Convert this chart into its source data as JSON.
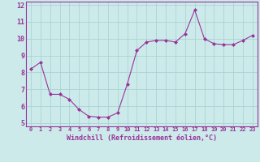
{
  "x": [
    0,
    1,
    2,
    3,
    4,
    5,
    6,
    7,
    8,
    9,
    10,
    11,
    12,
    13,
    14,
    15,
    16,
    17,
    18,
    19,
    20,
    21,
    22,
    23
  ],
  "y": [
    8.2,
    8.6,
    6.7,
    6.7,
    6.4,
    5.8,
    5.4,
    5.35,
    5.35,
    5.6,
    7.3,
    9.3,
    9.8,
    9.9,
    9.9,
    9.8,
    10.3,
    11.7,
    10.0,
    9.7,
    9.65,
    9.65,
    9.9,
    10.2
  ],
  "xlim": [
    -0.5,
    23.5
  ],
  "ylim": [
    4.8,
    12.2
  ],
  "yticks": [
    5,
    6,
    7,
    8,
    9,
    10,
    11,
    12
  ],
  "xticks": [
    0,
    1,
    2,
    3,
    4,
    5,
    6,
    7,
    8,
    9,
    10,
    11,
    12,
    13,
    14,
    15,
    16,
    17,
    18,
    19,
    20,
    21,
    22,
    23
  ],
  "xlabel": "Windchill (Refroidissement éolien,°C)",
  "line_color": "#993399",
  "marker": "D",
  "marker_size": 2.0,
  "bg_color": "#cceaea",
  "grid_color": "#aad4d4",
  "tick_color": "#993399",
  "label_color": "#993399",
  "spine_color": "#993399",
  "font_name": "monospace",
  "tick_fontsize": 5.0,
  "xlabel_fontsize": 6.0
}
